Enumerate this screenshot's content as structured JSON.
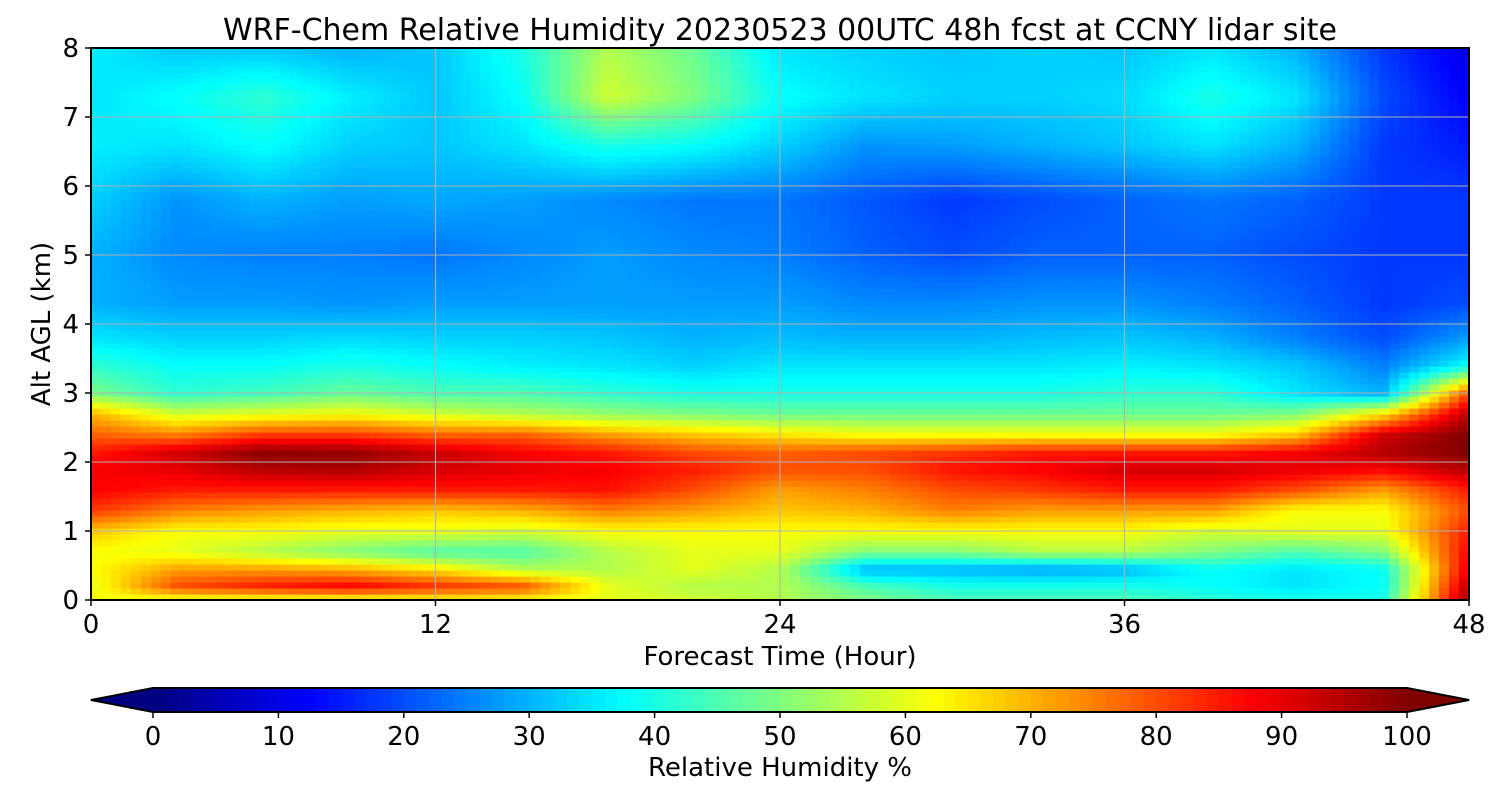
{
  "chart_data": {
    "type": "heatmap",
    "title": "WRF-Chem Relative Humidity 20230523 00UTC 48h fcst at CCNY lidar site",
    "xlabel": "Forecast Time (Hour)",
    "ylabel": "Alt AGL (km)",
    "xlim": [
      0,
      48
    ],
    "ylim": [
      0,
      8
    ],
    "xticks": [
      "0",
      "12",
      "24",
      "36",
      "48"
    ],
    "yticks": [
      "0",
      "1",
      "2",
      "3",
      "4",
      "5",
      "6",
      "7",
      "8"
    ],
    "grid": true,
    "colormap": "jet",
    "colorbar": {
      "label": "Relative Humidity %",
      "range": [
        0,
        100
      ],
      "ticks": [
        "0",
        "10",
        "20",
        "30",
        "40",
        "50",
        "60",
        "70",
        "80",
        "90",
        "100"
      ],
      "extend": "both",
      "orientation": "horizontal"
    },
    "x": [
      0,
      3,
      6,
      9,
      12,
      15,
      18,
      21,
      24,
      27,
      30,
      33,
      36,
      39,
      42,
      45,
      48
    ],
    "y": [
      0,
      0.2,
      0.45,
      0.7,
      1.0,
      1.3,
      1.6,
      1.9,
      2.15,
      2.4,
      2.7,
      3.0,
      3.4,
      3.8,
      4.3,
      5.0,
      5.8,
      6.6,
      7.3,
      8.0
    ],
    "z": [
      [
        62,
        60,
        60,
        60,
        62,
        62,
        60,
        58,
        55,
        50,
        45,
        45,
        45,
        42,
        40,
        40,
        98
      ],
      [
        60,
        80,
        85,
        88,
        83,
        80,
        60,
        55,
        55,
        45,
        40,
        40,
        40,
        38,
        35,
        38,
        95
      ],
      [
        62,
        72,
        72,
        70,
        65,
        55,
        55,
        60,
        55,
        30,
        30,
        28,
        30,
        38,
        35,
        38,
        90
      ],
      [
        62,
        60,
        55,
        50,
        45,
        45,
        55,
        60,
        60,
        50,
        50,
        55,
        55,
        50,
        45,
        50,
        88
      ],
      [
        68,
        62,
        62,
        60,
        60,
        58,
        62,
        62,
        62,
        62,
        62,
        62,
        62,
        58,
        60,
        60,
        85
      ],
      [
        82,
        75,
        72,
        70,
        68,
        70,
        75,
        72,
        68,
        70,
        75,
        72,
        72,
        72,
        62,
        62,
        80
      ],
      [
        88,
        85,
        85,
        85,
        85,
        85,
        86,
        80,
        72,
        75,
        80,
        82,
        85,
        85,
        80,
        72,
        85
      ],
      [
        88,
        90,
        95,
        96,
        92,
        90,
        88,
        85,
        80,
        80,
        86,
        88,
        92,
        92,
        90,
        88,
        95
      ],
      [
        85,
        92,
        99,
        98,
        93,
        88,
        85,
        80,
        78,
        80,
        82,
        85,
        85,
        85,
        88,
        95,
        100
      ],
      [
        78,
        75,
        82,
        82,
        78,
        78,
        72,
        68,
        65,
        62,
        62,
        62,
        62,
        62,
        68,
        92,
        100
      ],
      [
        70,
        58,
        60,
        62,
        58,
        55,
        52,
        50,
        48,
        48,
        48,
        48,
        48,
        48,
        50,
        65,
        95
      ],
      [
        50,
        42,
        44,
        48,
        45,
        45,
        42,
        40,
        40,
        40,
        40,
        40,
        42,
        42,
        35,
        30,
        80
      ],
      [
        42,
        38,
        38,
        40,
        38,
        36,
        35,
        33,
        35,
        35,
        35,
        35,
        36,
        35,
        32,
        25,
        38
      ],
      [
        35,
        33,
        33,
        34,
        33,
        33,
        32,
        30,
        31,
        30,
        30,
        31,
        32,
        30,
        25,
        20,
        28
      ],
      [
        30,
        28,
        28,
        27,
        28,
        28,
        28,
        28,
        28,
        26,
        26,
        27,
        27,
        25,
        22,
        18,
        20
      ],
      [
        30,
        26,
        25,
        25,
        24,
        26,
        28,
        26,
        25,
        22,
        20,
        22,
        22,
        22,
        20,
        18,
        18
      ],
      [
        33,
        27,
        30,
        28,
        29,
        28,
        26,
        24,
        24,
        21,
        18,
        20,
        22,
        24,
        22,
        18,
        18
      ],
      [
        36,
        35,
        38,
        33,
        32,
        35,
        40,
        38,
        33,
        27,
        28,
        30,
        32,
        35,
        30,
        18,
        15
      ],
      [
        35,
        38,
        42,
        36,
        32,
        38,
        58,
        50,
        38,
        35,
        33,
        33,
        34,
        40,
        35,
        20,
        12
      ],
      [
        36,
        32,
        32,
        30,
        32,
        40,
        55,
        48,
        35,
        33,
        32,
        33,
        32,
        35,
        30,
        18,
        10
      ]
    ]
  }
}
